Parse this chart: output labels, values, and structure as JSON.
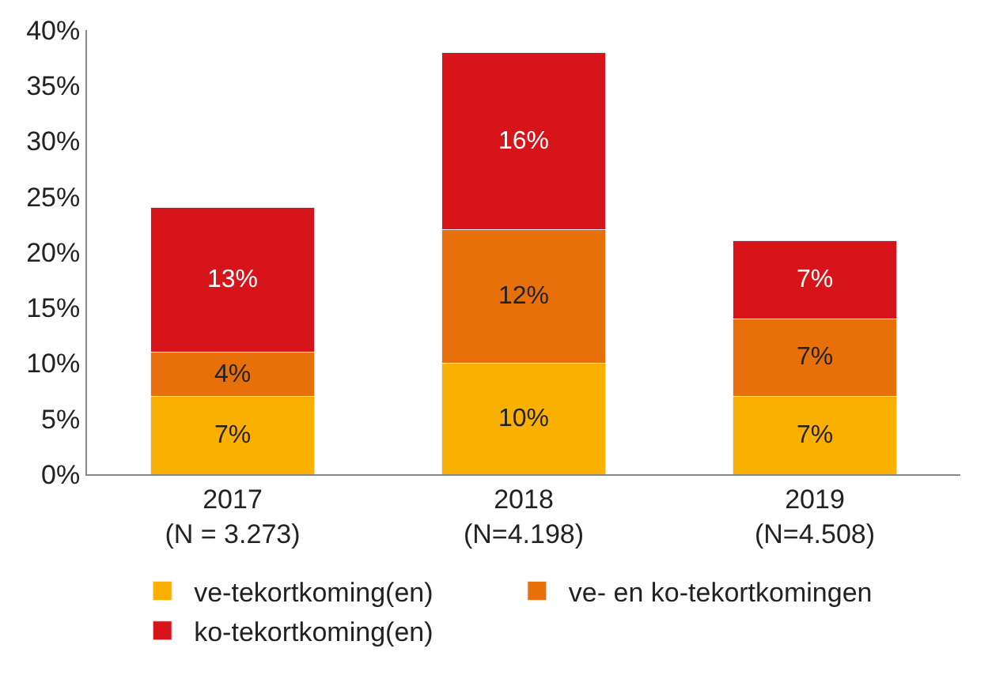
{
  "chart_data": {
    "type": "bar",
    "stacked": true,
    "categories": [
      "2017\n(N = 3.273)",
      "2018\n(N=4.198)",
      "2019\n(N=4.508)"
    ],
    "series": [
      {
        "name": "ve-tekortkoming(en)",
        "color": "#f9b000",
        "values": [
          7,
          10,
          7
        ],
        "value_labels": [
          "7%",
          "10%",
          "7%"
        ]
      },
      {
        "name": "ve- en ko-tekortkomingen",
        "color": "#e8700a",
        "values": [
          4,
          12,
          7
        ],
        "value_labels": [
          "4%",
          "12%",
          "7%"
        ]
      },
      {
        "name": "ko-tekortkoming(en)",
        "color": "#d7141a",
        "values": [
          13,
          16,
          7
        ],
        "value_labels": [
          "13%",
          "16%",
          "7%"
        ]
      }
    ],
    "ylim": [
      0,
      40
    ],
    "yticks": [
      {
        "value": 0,
        "label": "0%"
      },
      {
        "value": 5,
        "label": "5%"
      },
      {
        "value": 10,
        "label": "10%"
      },
      {
        "value": 15,
        "label": "15%"
      },
      {
        "value": 20,
        "label": "20%"
      },
      {
        "value": 25,
        "label": "25%"
      },
      {
        "value": 30,
        "label": "30%"
      },
      {
        "value": 35,
        "label": "35%"
      },
      {
        "value": 40,
        "label": "40%"
      }
    ],
    "legend": "bottom"
  }
}
